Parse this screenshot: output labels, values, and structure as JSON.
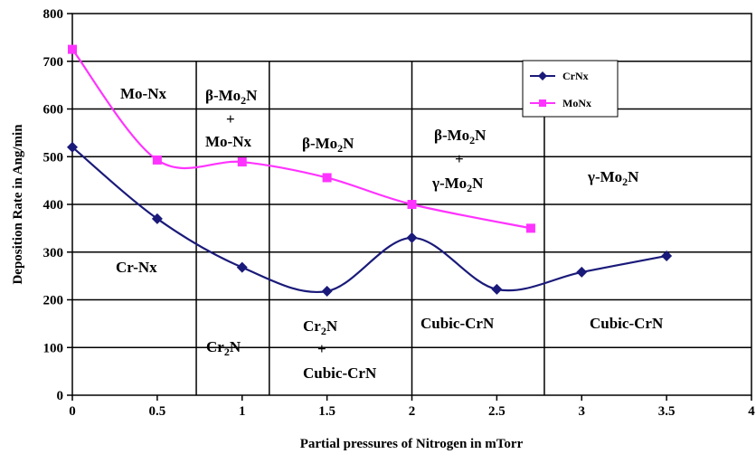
{
  "chart_data": {
    "type": "line",
    "title": "",
    "xlabel": "Partial pressures of Nitrogen in mTorr",
    "ylabel": "Deposition Rate in Ang/min",
    "xlim": [
      0,
      4
    ],
    "ylim": [
      0,
      800
    ],
    "x_ticks": [
      "0",
      "0.5",
      "1",
      "1.5",
      "2",
      "2.5",
      "3",
      "3.5",
      "4"
    ],
    "y_ticks": [
      "0",
      "100",
      "200",
      "300",
      "400",
      "500",
      "600",
      "700",
      "800"
    ],
    "grid": "horizontal",
    "legend_position": "top-right",
    "series": [
      {
        "name": "CrNx",
        "color": "#1a1a7a",
        "marker": "diamond",
        "x": [
          0,
          0.5,
          1,
          1.5,
          2,
          2.5,
          3,
          3.5
        ],
        "y": [
          520,
          370,
          268,
          218,
          330,
          222,
          258,
          292
        ]
      },
      {
        "name": "MoNx",
        "color": "#ff33ff",
        "marker": "square",
        "x": [
          0,
          0.5,
          1,
          1.5,
          2,
          2.7
        ],
        "y": [
          725,
          493,
          489,
          456,
          400,
          350
        ]
      }
    ],
    "region_dividers_x": [
      0.73,
      1.16,
      2.0,
      2.78
    ],
    "annotations": {
      "mo_nx": "Mo-Nx",
      "beta_mo2n_a": "β-Mo",
      "beta_mo2n_a_sub": "2",
      "beta_mo2n_a_n": "N",
      "plus_1": "+",
      "mo_nx_2": "Mo-Nx",
      "beta_mo2n_b": "β-Mo",
      "beta_mo2n_b_sub": "2",
      "beta_mo2n_b_n": "N",
      "beta_mo2n_c": "β-Mo",
      "beta_mo2n_c_sub": "2",
      "beta_mo2n_c_n": "N",
      "plus_2": "+",
      "gamma_mo2n_a": "γ-Mo",
      "gamma_mo2n_a_sub": "2",
      "gamma_mo2n_a_n": "N",
      "gamma_mo2n_b": "γ-Mo",
      "gamma_mo2n_b_sub": "2",
      "gamma_mo2n_b_n": "N",
      "cr_nx": "Cr-Nx",
      "cr2n_a": "Cr",
      "cr2n_a_sub": "2",
      "cr2n_a_n": "N",
      "cr2n_b": "Cr",
      "cr2n_b_sub": "2",
      "cr2n_b_n": "N",
      "plus_3": "+",
      "cubic_crn_a": "Cubic-CrN",
      "cubic_crn_b": "Cubic-CrN",
      "cubic_crn_c": "Cubic-CrN"
    }
  }
}
